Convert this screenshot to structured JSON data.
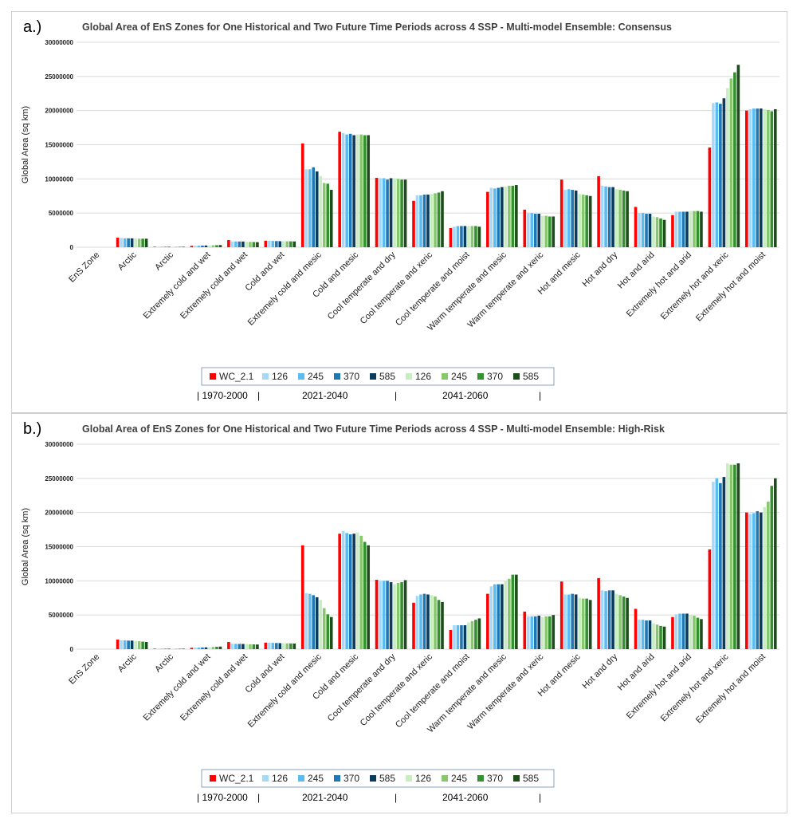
{
  "chart_data": [
    {
      "panel": "a.)",
      "type": "bar",
      "title": "Global Area of EnS Zones for One Historical and Two Future Time Periods across 4 SSP  - Multi-model Ensemble: Consensus",
      "ylabel": "Global Area  (sq km)",
      "ylim": [
        0,
        30000000
      ],
      "yticks": [
        "0",
        "5000000",
        "10000000",
        "15000000",
        "20000000",
        "25000000",
        "30000000"
      ],
      "grid": true,
      "legend_position": "bottom",
      "categories": [
        "EnS Zone",
        "Arctic",
        "Arctic",
        "Extremely cold and wet",
        "Extremely cold and wet",
        "Cold and wet",
        "Extremely cold and mesic",
        "Cold and mesic",
        "Cool temperate and dry",
        "Cool temperate and xeric",
        "Cool temperate and moist",
        "Warm temperate and mesic",
        "Warm temperate and xeric",
        "Hot and mesic",
        "Hot and dry",
        "Hot and arid",
        "Extremely hot and arid",
        "Extremely hot and xeric",
        "Extremely hot and moist"
      ],
      "series": [
        {
          "name": "WC_2.1",
          "color": "#ff0000",
          "values": [
            0,
            1400000,
            50000,
            200000,
            1050000,
            950000,
            15200000,
            16900000,
            10150000,
            6800000,
            2800000,
            8100000,
            5500000,
            9900000,
            10400000,
            5900000,
            4700000,
            14600000,
            20000000
          ]
        },
        {
          "name": "126",
          "color": "#a6d9f7",
          "values": [
            0,
            1350000,
            50000,
            220000,
            850000,
            950000,
            11400000,
            16700000,
            10100000,
            7600000,
            3000000,
            8700000,
            5000000,
            8400000,
            9000000,
            5000000,
            5200000,
            21100000,
            20200000
          ]
        },
        {
          "name": "245",
          "color": "#5bbcf2",
          "values": [
            0,
            1300000,
            50000,
            230000,
            850000,
            920000,
            11400000,
            16500000,
            10100000,
            7600000,
            3100000,
            8600000,
            5000000,
            8500000,
            8900000,
            5000000,
            5200000,
            21200000,
            20300000
          ]
        },
        {
          "name": "370",
          "color": "#1f78b4",
          "values": [
            0,
            1300000,
            50000,
            240000,
            840000,
            900000,
            11700000,
            16600000,
            9900000,
            7700000,
            3100000,
            8700000,
            4900000,
            8400000,
            8800000,
            4900000,
            5200000,
            21000000,
            20300000
          ]
        },
        {
          "name": "585",
          "color": "#0b3c5d",
          "values": [
            0,
            1300000,
            50000,
            250000,
            830000,
            880000,
            11100000,
            16400000,
            10100000,
            7700000,
            3100000,
            8800000,
            4900000,
            8300000,
            8800000,
            4900000,
            5200000,
            21800000,
            20300000
          ]
        },
        {
          "name": "126",
          "color": "#c7edc0",
          "values": [
            0,
            1300000,
            50000,
            260000,
            800000,
            880000,
            10400000,
            16500000,
            10100000,
            7800000,
            3100000,
            8900000,
            4600000,
            7800000,
            8500000,
            4500000,
            5300000,
            23300000,
            20200000
          ]
        },
        {
          "name": "245",
          "color": "#86c86b",
          "values": [
            0,
            1250000,
            50000,
            280000,
            780000,
            870000,
            9400000,
            16500000,
            10000000,
            7900000,
            3100000,
            9000000,
            4600000,
            7700000,
            8400000,
            4400000,
            5300000,
            24700000,
            20100000
          ]
        },
        {
          "name": "370",
          "color": "#33922f",
          "values": [
            0,
            1250000,
            50000,
            300000,
            760000,
            860000,
            9300000,
            16400000,
            9900000,
            8000000,
            3100000,
            9000000,
            4500000,
            7600000,
            8300000,
            4200000,
            5300000,
            25600000,
            19900000
          ]
        },
        {
          "name": "585",
          "color": "#1d4d1a",
          "values": [
            0,
            1250000,
            50000,
            320000,
            740000,
            850000,
            8400000,
            16400000,
            9900000,
            8200000,
            3000000,
            9100000,
            4500000,
            7500000,
            8200000,
            4000000,
            5200000,
            26700000,
            20200000
          ]
        }
      ],
      "period_labels": [
        "| 1970-2000",
        "|",
        "2021-2040",
        "|",
        "2041-2060",
        "|"
      ]
    },
    {
      "panel": "b.)",
      "type": "bar",
      "title": "Global Area of EnS Zones for One Historical and Two Future Time Periods across 4 SSP  - Multi-model Ensemble: High-Risk",
      "ylabel": "Global Area  (sq km)",
      "ylim": [
        0,
        30000000
      ],
      "yticks": [
        "0",
        "5000000",
        "10000000",
        "15000000",
        "20000000",
        "25000000",
        "30000000"
      ],
      "grid": true,
      "legend_position": "bottom",
      "categories": [
        "EnS Zone",
        "Arctic",
        "Arctic",
        "Extremely cold and wet",
        "Extremely cold and wet",
        "Cold and wet",
        "Extremely cold and mesic",
        "Cold and mesic",
        "Cool temperate and dry",
        "Cool temperate and xeric",
        "Cool temperate and moist",
        "Warm temperate and mesic",
        "Warm temperate and xeric",
        "Hot and mesic",
        "Hot and dry",
        "Hot and arid",
        "Extremely hot and arid",
        "Extremely hot and xeric",
        "Extremely hot and moist"
      ],
      "series": [
        {
          "name": "WC_2.1",
          "color": "#ff0000",
          "values": [
            0,
            1400000,
            50000,
            200000,
            1050000,
            950000,
            15200000,
            16900000,
            10150000,
            6800000,
            2800000,
            8100000,
            5500000,
            9900000,
            10400000,
            5900000,
            4700000,
            14600000,
            20000000
          ]
        },
        {
          "name": "126",
          "color": "#a6d9f7",
          "values": [
            0,
            1300000,
            50000,
            230000,
            800000,
            950000,
            8200000,
            17300000,
            10000000,
            7800000,
            3500000,
            9200000,
            4800000,
            8000000,
            8600000,
            4300000,
            5100000,
            24500000,
            19800000
          ]
        },
        {
          "name": "245",
          "color": "#5bbcf2",
          "values": [
            0,
            1300000,
            50000,
            240000,
            780000,
            920000,
            8100000,
            17000000,
            10000000,
            8000000,
            3500000,
            9500000,
            4800000,
            8000000,
            8500000,
            4300000,
            5200000,
            25000000,
            19900000
          ]
        },
        {
          "name": "370",
          "color": "#1f78b4",
          "values": [
            0,
            1250000,
            50000,
            250000,
            770000,
            900000,
            7900000,
            16800000,
            10000000,
            8100000,
            3500000,
            9500000,
            4800000,
            8100000,
            8600000,
            4200000,
            5200000,
            24300000,
            20200000
          ]
        },
        {
          "name": "585",
          "color": "#0b3c5d",
          "values": [
            0,
            1250000,
            50000,
            260000,
            760000,
            880000,
            7600000,
            16900000,
            9800000,
            8000000,
            3500000,
            9500000,
            4900000,
            8000000,
            8600000,
            4200000,
            5200000,
            25200000,
            20000000
          ]
        },
        {
          "name": "126",
          "color": "#c7edc0",
          "values": [
            0,
            1200000,
            50000,
            280000,
            740000,
            860000,
            7200000,
            17100000,
            9500000,
            7900000,
            3900000,
            10000000,
            4700000,
            7500000,
            8100000,
            3800000,
            5000000,
            27200000,
            20800000
          ]
        },
        {
          "name": "245",
          "color": "#86c86b",
          "values": [
            0,
            1150000,
            50000,
            320000,
            720000,
            850000,
            6000000,
            16600000,
            9700000,
            7700000,
            4100000,
            10300000,
            4800000,
            7400000,
            7900000,
            3600000,
            4900000,
            27000000,
            21600000
          ]
        },
        {
          "name": "370",
          "color": "#33922f",
          "values": [
            0,
            1100000,
            50000,
            350000,
            700000,
            840000,
            5100000,
            15700000,
            9800000,
            7200000,
            4300000,
            10900000,
            4800000,
            7400000,
            7700000,
            3400000,
            4600000,
            27000000,
            23900000
          ]
        },
        {
          "name": "585",
          "color": "#1d4d1a",
          "values": [
            0,
            1050000,
            50000,
            380000,
            680000,
            830000,
            4700000,
            15200000,
            10100000,
            6900000,
            4500000,
            10900000,
            5000000,
            7200000,
            7500000,
            3300000,
            4400000,
            27200000,
            25000000
          ]
        }
      ],
      "period_labels": [
        "| 1970-2000",
        "|",
        "2021-2040",
        "|",
        "2041-2060",
        "|"
      ]
    }
  ]
}
